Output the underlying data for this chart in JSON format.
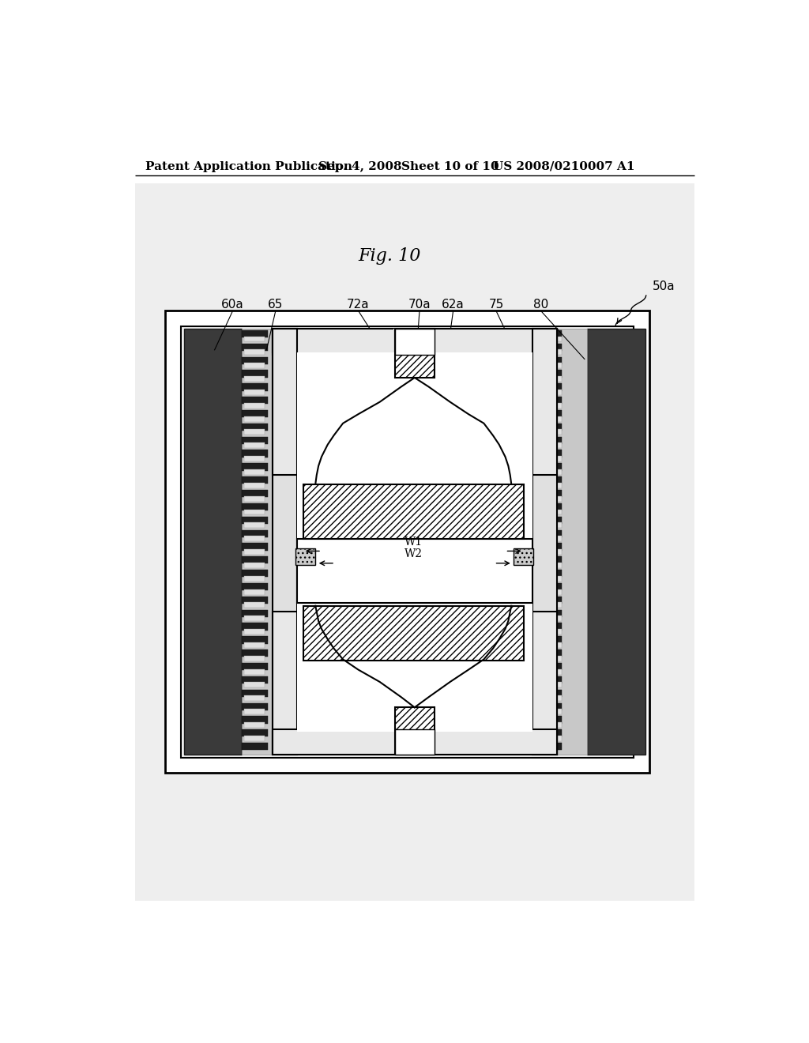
{
  "bg_color": "#ffffff",
  "page_bg": "#d8d8d8",
  "header_text": "Patent Application Publication",
  "header_date": "Sep. 4, 2008",
  "header_sheet": "Sheet 10 of 10",
  "header_patent": "US 2008/0210007 A1",
  "fig_title": "Fig. 10",
  "labels": [
    "60a",
    "65",
    "72a",
    "70a",
    "62a",
    "75",
    "80"
  ],
  "label_50a": "50a"
}
